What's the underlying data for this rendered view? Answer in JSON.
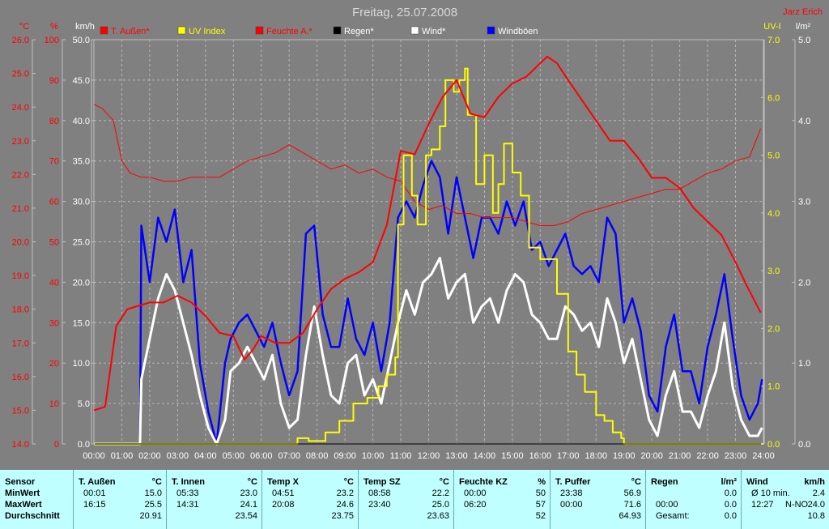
{
  "chart_data": {
    "type": "line",
    "title": "Freitag, 25.07.2008",
    "author": "Jarz Erich",
    "colors": {
      "background": "#808080",
      "plot": "#808080",
      "temp": "#FF0000",
      "uv": "#FFFF00",
      "humidity": "#FF0000",
      "rain": "#000000",
      "wind": "#FFFFFF",
      "gust": "#0000FF"
    },
    "legend": [
      "T. Außen*",
      "UV Index",
      "Feuchte A.*",
      "Regen*",
      "Wind*",
      "Windböen"
    ],
    "axes": {
      "temp": {
        "unit": "°C",
        "ticks": [
          "26.0",
          "25.0",
          "24.0",
          "23.0",
          "22.0",
          "21.0",
          "20.0",
          "19.0",
          "18.0",
          "17.0",
          "16.0",
          "15.0",
          "14.0"
        ],
        "min": 14,
        "max": 26
      },
      "hum": {
        "unit": "%",
        "ticks": [
          "100",
          "90",
          "80",
          "70",
          "60",
          "50",
          "40",
          "30",
          "20",
          "10",
          "0"
        ],
        "min": 0,
        "max": 100
      },
      "wind": {
        "unit": "km/h",
        "ticks": [
          "50.0",
          "45.0",
          "40.0",
          "35.0",
          "30.0",
          "25.0",
          "20.0",
          "15.0",
          "10.0",
          "5.0",
          "0.0"
        ],
        "min": 0,
        "max": 50
      },
      "uv": {
        "unit": "UV-I",
        "ticks": [
          "7.0",
          "6.0",
          "5.0",
          "4.0",
          "3.0",
          "2.0",
          "1.0",
          "0.0"
        ],
        "min": 0,
        "max": 7
      },
      "rain": {
        "unit": "l/m²",
        "ticks": [
          "5.0",
          "4.0",
          "3.0",
          "2.0",
          "1.0",
          "0.0"
        ],
        "min": 0,
        "max": 5
      }
    },
    "x_ticks": [
      "00:00",
      "01:00",
      "02:00",
      "03:00",
      "04:00",
      "05:00",
      "06:00",
      "07:00",
      "08:00",
      "09:00",
      "10:00",
      "11:00",
      "12:00",
      "13:00",
      "14:00",
      "15:00",
      "16:00",
      "17:00",
      "18:00",
      "19:00",
      "20:00",
      "21:00",
      "22:00",
      "23:00",
      "24:00"
    ],
    "series": [
      {
        "name": "T. Außen*",
        "unit": "°C",
        "x": [
          0,
          0.4,
          0.8,
          1.2,
          1.6,
          2.0,
          2.5,
          3.0,
          3.5,
          4.0,
          4.5,
          5.0,
          5.4,
          5.7,
          6.0,
          6.5,
          7.0,
          7.5,
          8.0,
          8.5,
          9.0,
          9.5,
          10.0,
          10.5,
          11.0,
          11.5,
          12.0,
          12.5,
          13.0,
          13.5,
          14.0,
          14.5,
          15.0,
          15.5,
          16.0,
          16.25,
          16.6,
          17.0,
          17.5,
          18.0,
          18.5,
          19.0,
          19.5,
          20.0,
          20.5,
          21.0,
          21.5,
          22.0,
          22.5,
          23.0,
          23.4,
          23.9
        ],
        "y": [
          15.0,
          15.1,
          17.5,
          18.0,
          18.1,
          18.2,
          18.2,
          18.4,
          18.2,
          17.8,
          17.3,
          17.2,
          16.5,
          16.8,
          17.2,
          17.0,
          17.0,
          17.3,
          18.0,
          18.6,
          18.9,
          19.1,
          19.4,
          20.5,
          22.7,
          22.6,
          23.5,
          24.3,
          24.8,
          23.8,
          23.7,
          24.3,
          24.7,
          24.9,
          25.3,
          25.5,
          25.3,
          24.8,
          24.2,
          23.6,
          23.0,
          23.0,
          22.5,
          21.9,
          21.9,
          21.6,
          21.0,
          20.6,
          20.2,
          19.4,
          18.7,
          17.9
        ]
      },
      {
        "name": "Feuchte A.*",
        "unit": "%",
        "x": [
          0,
          0.3,
          0.7,
          1.0,
          1.3,
          1.7,
          2.0,
          2.5,
          3.0,
          3.5,
          4.0,
          4.5,
          5.0,
          5.5,
          6.0,
          6.5,
          7.0,
          7.5,
          8.0,
          8.5,
          9.0,
          9.5,
          10.0,
          10.5,
          11.0,
          11.5,
          12.0,
          12.5,
          13.0,
          13.5,
          14.0,
          14.5,
          15.0,
          15.5,
          16.0,
          16.5,
          17.0,
          17.5,
          18.0,
          18.5,
          19.0,
          19.5,
          20.0,
          20.5,
          21.0,
          21.5,
          22.0,
          22.5,
          23.0,
          23.5,
          23.9
        ],
        "y": [
          84,
          83,
          80,
          70,
          67,
          66,
          66,
          65,
          65,
          66,
          66,
          66,
          68,
          70,
          71,
          72,
          74,
          72,
          70,
          68,
          69,
          67,
          68,
          66,
          65,
          60,
          58,
          59,
          57,
          57,
          56,
          56,
          56,
          55,
          54,
          54,
          55,
          57,
          58,
          59,
          60,
          61,
          62,
          63,
          63,
          65,
          67,
          68,
          70,
          71,
          78
        ]
      },
      {
        "name": "UV Index",
        "unit": "UV-I",
        "x": [
          0,
          7.2,
          7.3,
          7.7,
          8.3,
          8.8,
          9.3,
          9.8,
          10.2,
          10.5,
          10.8,
          10.9,
          11.1,
          11.4,
          11.6,
          11.9,
          12.1,
          12.4,
          12.6,
          12.9,
          13.1,
          13.3,
          13.4,
          13.7,
          14.0,
          14.3,
          14.5,
          14.7,
          15.0,
          15.3,
          15.6,
          16.0,
          16.3,
          16.6,
          17.0,
          17.3,
          17.6,
          18.0,
          18.3,
          18.6,
          18.9,
          19.0,
          24.0
        ],
        "y": [
          0,
          0,
          0.1,
          0.05,
          0.2,
          0.4,
          0.7,
          0.8,
          1.0,
          1.2,
          1.5,
          3.8,
          5.0,
          4.3,
          3.8,
          5.0,
          5.1,
          5.5,
          6.3,
          6.1,
          6.3,
          6.5,
          5.7,
          4.5,
          5.0,
          4.0,
          4.5,
          5.2,
          4.7,
          4.3,
          3.4,
          3.2,
          3.2,
          2.6,
          1.6,
          1.2,
          0.9,
          0.5,
          0.4,
          0.2,
          0.1,
          0,
          0
        ]
      },
      {
        "name": "Regen*",
        "unit": "l/m²",
        "x": [
          0,
          24
        ],
        "y": [
          0,
          0
        ]
      },
      {
        "name": "Wind*",
        "unit": "km/h",
        "x": [
          0,
          1.65,
          1.7,
          2.0,
          2.3,
          2.6,
          2.9,
          3.2,
          3.5,
          3.8,
          4.1,
          4.4,
          4.7,
          4.9,
          5.2,
          5.5,
          5.8,
          6.1,
          6.4,
          6.7,
          7.0,
          7.3,
          7.6,
          7.9,
          8.2,
          8.5,
          8.8,
          9.1,
          9.4,
          9.7,
          10.0,
          10.3,
          10.6,
          10.9,
          11.2,
          11.5,
          11.8,
          12.1,
          12.4,
          12.7,
          13.0,
          13.3,
          13.6,
          13.9,
          14.2,
          14.5,
          14.8,
          15.1,
          15.4,
          15.7,
          16.0,
          16.3,
          16.6,
          16.9,
          17.2,
          17.5,
          17.8,
          18.1,
          18.4,
          18.7,
          19.0,
          19.3,
          19.6,
          19.9,
          20.2,
          20.5,
          20.8,
          21.1,
          21.4,
          21.7,
          22.0,
          22.3,
          22.6,
          22.9,
          23.2,
          23.5,
          23.8,
          23.95
        ],
        "y": [
          0,
          0,
          8,
          13,
          18,
          21,
          19,
          15,
          11,
          6,
          2,
          0,
          3,
          9,
          10,
          12,
          10,
          8,
          11,
          5,
          2,
          3,
          11,
          17,
          11,
          6,
          5,
          10,
          11,
          6,
          8,
          5,
          10,
          15,
          19,
          16,
          20,
          21,
          23,
          18,
          20,
          21,
          15,
          17,
          18,
          15,
          19,
          21,
          20,
          16,
          15,
          13,
          13,
          17,
          16,
          14,
          15,
          12,
          18,
          15,
          10,
          13,
          8,
          3,
          1,
          6,
          9,
          4,
          4,
          2,
          6,
          9,
          15,
          7,
          3,
          1,
          1,
          2
        ]
      },
      {
        "name": "Windböen",
        "unit": "km/h",
        "x": [
          0,
          1.65,
          1.7,
          2.0,
          2.3,
          2.6,
          2.9,
          3.2,
          3.5,
          3.8,
          4.1,
          4.4,
          4.7,
          4.9,
          5.2,
          5.5,
          5.8,
          6.1,
          6.4,
          6.7,
          7.0,
          7.3,
          7.6,
          7.9,
          8.2,
          8.5,
          8.8,
          9.1,
          9.4,
          9.7,
          10.0,
          10.3,
          10.6,
          10.9,
          11.2,
          11.5,
          11.8,
          12.1,
          12.4,
          12.7,
          13.0,
          13.3,
          13.6,
          13.9,
          14.2,
          14.5,
          14.8,
          15.1,
          15.4,
          15.7,
          16.0,
          16.3,
          16.6,
          16.9,
          17.2,
          17.5,
          17.8,
          18.1,
          18.4,
          18.7,
          19.0,
          19.3,
          19.6,
          19.9,
          20.2,
          20.5,
          20.8,
          21.1,
          21.4,
          21.7,
          22.0,
          22.3,
          22.6,
          22.9,
          23.2,
          23.5,
          23.8,
          23.95
        ],
        "y": [
          0,
          0,
          27,
          20,
          28,
          25,
          29,
          20,
          24,
          10,
          4,
          0,
          10,
          13,
          15,
          16,
          14,
          12,
          15,
          10,
          6,
          9,
          26,
          27,
          16,
          12,
          12,
          18,
          13,
          11,
          15,
          9,
          15,
          28,
          30,
          28,
          32,
          35,
          33,
          26,
          33,
          28,
          23,
          28,
          28,
          26,
          30,
          27,
          30,
          24,
          25,
          22,
          24,
          26,
          22,
          21,
          22,
          20,
          28,
          26,
          15,
          18,
          14,
          6,
          4,
          12,
          16,
          9,
          9,
          5,
          12,
          16,
          21,
          13,
          6,
          3,
          5,
          8
        ]
      }
    ]
  },
  "table": {
    "columns": [
      {
        "name": "T. Außen",
        "unit": "°C",
        "min_time": "00:01",
        "min_val": "15.0",
        "max_time": "16:15",
        "max_val": "25.5",
        "avg": "20.91"
      },
      {
        "name": "T. Innen",
        "unit": "°C",
        "min_time": "05:33",
        "min_val": "23.0",
        "max_time": "14:31",
        "max_val": "24.1",
        "avg": "23.54"
      },
      {
        "name": "Temp X",
        "unit": "°C",
        "min_time": "04:51",
        "min_val": "23.2",
        "max_time": "20:08",
        "max_val": "24.6",
        "avg": "23.75"
      },
      {
        "name": "Temp SZ",
        "unit": "°C",
        "min_time": "08:58",
        "min_val": "22.2",
        "max_time": "23:40",
        "max_val": "25.0",
        "avg": "23.63"
      },
      {
        "name": "Feuchte KZ",
        "unit": "%",
        "min_time": "00:00",
        "min_val": "50",
        "max_time": "06:20",
        "max_val": "57",
        "avg": "52"
      },
      {
        "name": "T. Puffer",
        "unit": "°C",
        "min_time": "23:38",
        "min_val": "56.9",
        "max_time": "00:00",
        "max_val": "71.6",
        "avg": "64.93"
      }
    ],
    "rows": {
      "sensor": "Sensor",
      "min": "MinWert",
      "max": "MaxWert",
      "avg": "Durchschnitt"
    },
    "regen": {
      "name": "Regen",
      "unit": "l/m²",
      "time1": "00:00",
      "val1": "0.0",
      "val2": "0.0",
      "total_label": "Gesamt:",
      "total": "0.0"
    },
    "wind": {
      "name": "Wind",
      "unit": "km/h",
      "avg_label": "Ø 10 min.",
      "avg": "2.4",
      "max_time": "12:27",
      "max_dir": "N-NO",
      "max": "24.0",
      "mean": "10.8"
    }
  }
}
